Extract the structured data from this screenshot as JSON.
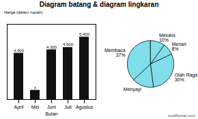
{
  "chart_data": [
    {
      "type": "bar",
      "title": "Diagram batang & diagram lingkaran",
      "annotations": [
        "soalfismat.com"
      ],
      "categories": [
        "April",
        "Mei",
        "Juni",
        "Juli",
        "Agustus"
      ],
      "values": [
        4000,
        800,
        4300,
        4500,
        5400
      ],
      "value_labels": [
        "4.000",
        "x",
        "4.300",
        "4.500",
        "5.400"
      ],
      "data_labels": true,
      "color": "#111111",
      "xlabel": "Bulan",
      "ylabel": "Harga (dalam rupiah)",
      "ylim": [
        0,
        6500
      ],
      "tick_labels": "x"
    },
    {
      "type": "pie",
      "categories": [
        "Membaca",
        "Menyayi",
        "Olah Raga",
        "Menari",
        "Melukis"
      ],
      "values": [
        37,
        15,
        30,
        8,
        10
      ],
      "value_labels": [
        "37%",
        null,
        "30%",
        "8%",
        "10%"
      ],
      "data_labels": true,
      "colors": [
        "#80deea",
        "#80deea",
        "#80deea",
        "#80deea",
        "#80deea"
      ]
    }
  ]
}
